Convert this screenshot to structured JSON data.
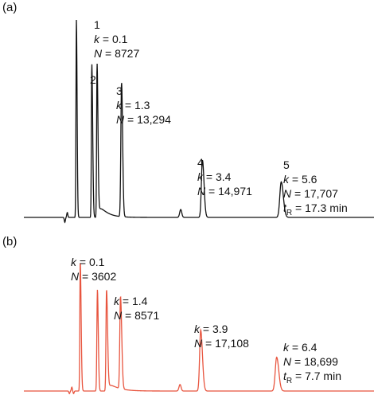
{
  "chart_data": [
    {
      "panel": "(a)",
      "type": "line",
      "line_color": "#111111",
      "axes_visible": false,
      "grid": false,
      "x_range": [
        0,
        1
      ],
      "y_range": [
        0,
        1
      ],
      "baseline": 0,
      "peaks": [
        {
          "id": "1",
          "x": 0.15,
          "height": 1.0,
          "w_left": 0.0012,
          "w_right": 0.002
        },
        {
          "id": "2",
          "x": 0.194,
          "height": 0.78,
          "w_left": 0.0012,
          "w_right": 0.0025
        },
        {
          "id": "2b",
          "x": 0.209,
          "height": 0.78,
          "w_left": 0.0012,
          "w_right": 0.0025,
          "tail": 0.022
        },
        {
          "id": "3",
          "x": 0.279,
          "height": 0.68,
          "w_left": 0.002,
          "w_right": 0.003
        },
        {
          "id": "minor",
          "x": 0.448,
          "height": 0.04,
          "w_left": 0.003,
          "w_right": 0.003
        },
        {
          "id": "4",
          "x": 0.51,
          "height": 0.29,
          "w_left": 0.003,
          "w_right": 0.0045
        },
        {
          "id": "5",
          "x": 0.735,
          "height": 0.18,
          "w_left": 0.004,
          "w_right": 0.006
        }
      ],
      "noise": [
        {
          "x": 0.117,
          "depth": -0.025
        },
        {
          "x": 0.124,
          "depth": 0.025
        }
      ],
      "annotations": [
        {
          "peak": "1",
          "lines": [
            {
              "t": "1"
            },
            {
              "var": "k",
              "v": "0.1"
            },
            {
              "var": "N",
              "v": "8727"
            }
          ]
        },
        {
          "peak": "2",
          "lines": [
            {
              "t": "2"
            }
          ]
        },
        {
          "peak": "3",
          "lines": [
            {
              "t": "3"
            },
            {
              "var": "k",
              "v": "1.3"
            },
            {
              "var": "N",
              "v": "13,294"
            }
          ]
        },
        {
          "peak": "4",
          "lines": [
            {
              "t": "4"
            },
            {
              "var": "k",
              "v": "3.4"
            },
            {
              "var": "N",
              "v": "14,971"
            }
          ]
        },
        {
          "peak": "5",
          "lines": [
            {
              "t": "5"
            },
            {
              "var": "k",
              "v": "5.6"
            },
            {
              "var": "N",
              "v": "17,707"
            },
            {
              "var": "t",
              "sub": "R",
              "v": "17.3 min"
            }
          ]
        }
      ]
    },
    {
      "panel": "(b)",
      "type": "line",
      "line_color": "#e8553f",
      "axes_visible": false,
      "grid": false,
      "x_range": [
        0,
        1
      ],
      "y_range": [
        0,
        1
      ],
      "baseline": 0,
      "peaks": [
        {
          "id": "1",
          "x": 0.161,
          "height": 1.0,
          "w_left": 0.0012,
          "w_right": 0.0025
        },
        {
          "id": "2",
          "x": 0.21,
          "height": 0.78,
          "w_left": 0.0015,
          "w_right": 0.0025
        },
        {
          "id": "2b",
          "x": 0.236,
          "height": 0.78,
          "w_left": 0.0015,
          "w_right": 0.003,
          "tail": 0.025
        },
        {
          "id": "3",
          "x": 0.276,
          "height": 0.71,
          "w_left": 0.002,
          "w_right": 0.0035
        },
        {
          "id": "minor",
          "x": 0.446,
          "height": 0.05,
          "w_left": 0.003,
          "w_right": 0.003
        },
        {
          "id": "4",
          "x": 0.505,
          "height": 0.47,
          "w_left": 0.003,
          "w_right": 0.005
        },
        {
          "id": "5",
          "x": 0.722,
          "height": 0.26,
          "w_left": 0.004,
          "w_right": 0.006
        }
      ],
      "noise": [
        {
          "x": 0.13,
          "depth": -0.02
        },
        {
          "x": 0.137,
          "depth": 0.03
        },
        {
          "x": 0.142,
          "depth": -0.02
        }
      ],
      "annotations": [
        {
          "peak": "1",
          "lines": [
            {
              "var": "k",
              "v": "0.1"
            },
            {
              "var": "N",
              "v": "3602"
            }
          ]
        },
        {
          "peak": "3",
          "lines": [
            {
              "var": "k",
              "v": "1.4"
            },
            {
              "var": "N",
              "v": "8571"
            }
          ]
        },
        {
          "peak": "4",
          "lines": [
            {
              "var": "k",
              "v": "3.9"
            },
            {
              "var": "N",
              "v": "17,108"
            }
          ]
        },
        {
          "peak": "5",
          "lines": [
            {
              "var": "k",
              "v": "6.4"
            },
            {
              "var": "N",
              "v": "18,699"
            },
            {
              "var": "t",
              "sub": "R",
              "v": "7.7 min"
            }
          ]
        }
      ]
    }
  ]
}
